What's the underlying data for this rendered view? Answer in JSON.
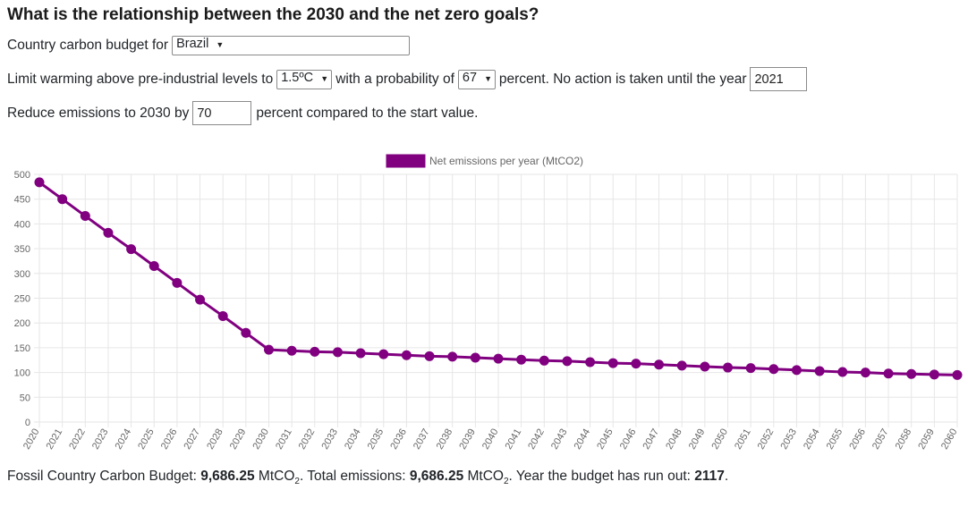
{
  "title": "What is the relationship between the 2030 and the net zero goals?",
  "country_row": {
    "label": "Country carbon budget for",
    "selected": "Brazil"
  },
  "warming_row": {
    "label_before": "Limit warming above pre-industrial levels to",
    "temperature": "1.5ºC",
    "label_mid": "with a probability of",
    "probability": "67",
    "label_after": "percent. No action is taken until the year",
    "year": "2021"
  },
  "reduce_row": {
    "label_before": "Reduce emissions to 2030 by",
    "value": "70",
    "label_after": "percent compared to the start value."
  },
  "footer": {
    "budget_label": "Fossil Country Carbon Budget:",
    "budget_value": "9,686.25",
    "unit_prefix": "MtCO",
    "unit_sub": "2",
    "total_label": ". Total emissions:",
    "total_value": "9,686.25",
    "runout_label": ". Year the budget has run out:",
    "runout_value": "2117",
    "end": "."
  },
  "colors": {
    "series": "#800080",
    "grid": "#e6e6e6",
    "axis_text": "#666666"
  },
  "chart_data": {
    "type": "line",
    "legend_position": "top-center",
    "grid": true,
    "ylim": [
      0,
      500
    ],
    "yticks": [
      "0",
      "50",
      "100",
      "150",
      "200",
      "250",
      "300",
      "350",
      "400",
      "450",
      "500"
    ],
    "x": [
      "2020",
      "2021",
      "2022",
      "2023",
      "2024",
      "2025",
      "2026",
      "2027",
      "2028",
      "2029",
      "2030",
      "2031",
      "2032",
      "2033",
      "2034",
      "2035",
      "2036",
      "2037",
      "2038",
      "2039",
      "2040",
      "2041",
      "2042",
      "2043",
      "2044",
      "2045",
      "2046",
      "2047",
      "2048",
      "2049",
      "2050",
      "2051",
      "2052",
      "2053",
      "2054",
      "2055",
      "2056",
      "2057",
      "2058",
      "2059",
      "2060"
    ],
    "series": [
      {
        "name": "Net emissions per year (MtCO2)",
        "color": "#800080",
        "values": [
          484,
          450,
          416,
          382,
          349,
          315,
          281,
          247,
          214,
          180,
          146,
          144,
          142,
          141,
          139,
          137,
          135,
          133,
          132,
          130,
          128,
          126,
          124,
          123,
          121,
          119,
          118,
          116,
          114,
          112,
          110,
          109,
          107,
          105,
          103,
          101,
          100,
          98,
          97,
          96,
          95
        ]
      }
    ]
  }
}
